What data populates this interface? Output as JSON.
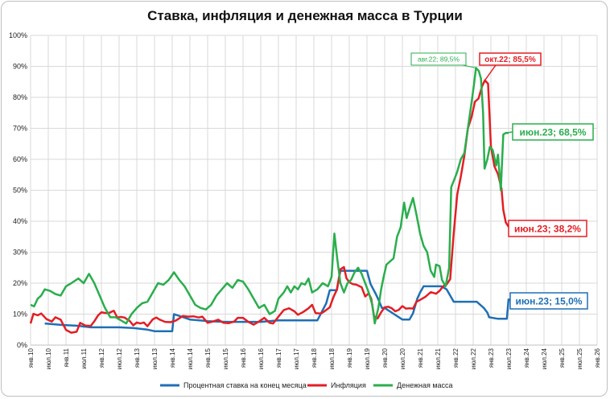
{
  "chart_data": {
    "type": "line",
    "title": "Ставка, инфляция и денежная масса в Турции",
    "xlabel": "",
    "ylabel": "",
    "ylim": [
      0,
      100
    ],
    "y_ticks": [
      "0%",
      "10%",
      "20%",
      "30%",
      "40%",
      "50%",
      "60%",
      "70%",
      "80%",
      "90%",
      "100%"
    ],
    "x_ticks": [
      "янв.10",
      "июл.10",
      "янв.11",
      "июл.11",
      "янв.12",
      "июл.12",
      "янв.13",
      "июл.13",
      "янв.14",
      "июл.14",
      "янв.15",
      "июл.15",
      "янв.16",
      "июл.16",
      "янв.17",
      "июл.17",
      "янв.18",
      "июл.18",
      "янв.19",
      "июл.19",
      "янв.20",
      "июл.20",
      "янв.21",
      "июл.21",
      "янв.22",
      "июл.22",
      "янв.23",
      "июл.23",
      "янв.24",
      "июл.24",
      "янв.25",
      "июл.25",
      "янв.26"
    ],
    "x_range_years": [
      2010.0,
      2026.0
    ],
    "legend_position": "bottom",
    "series": [
      {
        "name": "Процентная ставка на конец месяца",
        "color": "#1f6fb5",
        "points": [
          [
            2010.4,
            7.0
          ],
          [
            2010.9,
            6.5
          ],
          [
            2011.3,
            6.25
          ],
          [
            2011.7,
            5.75
          ],
          [
            2012.5,
            5.75
          ],
          [
            2012.9,
            5.5
          ],
          [
            2013.3,
            5.0
          ],
          [
            2013.5,
            4.5
          ],
          [
            2014.0,
            4.5
          ],
          [
            2014.05,
            10.0
          ],
          [
            2014.5,
            8.25
          ],
          [
            2015.0,
            7.75
          ],
          [
            2015.5,
            7.5
          ],
          [
            2016.0,
            7.5
          ],
          [
            2016.5,
            7.5
          ],
          [
            2017.0,
            8.0
          ],
          [
            2017.5,
            8.0
          ],
          [
            2018.0,
            8.0
          ],
          [
            2018.1,
            8.0
          ],
          [
            2018.35,
            13.5
          ],
          [
            2018.45,
            17.75
          ],
          [
            2018.65,
            17.75
          ],
          [
            2018.75,
            24.0
          ],
          [
            2019.0,
            24.0
          ],
          [
            2019.5,
            24.0
          ],
          [
            2019.6,
            19.75
          ],
          [
            2019.75,
            16.5
          ],
          [
            2019.85,
            14.0
          ],
          [
            2019.92,
            12.0
          ],
          [
            2020.0,
            12.0
          ],
          [
            2020.3,
            9.75
          ],
          [
            2020.5,
            8.25
          ],
          [
            2020.7,
            8.25
          ],
          [
            2020.8,
            10.25
          ],
          [
            2020.92,
            15.0
          ],
          [
            2021.0,
            17.0
          ],
          [
            2021.1,
            19.0
          ],
          [
            2021.6,
            19.0
          ],
          [
            2021.75,
            18.0
          ],
          [
            2021.85,
            16.0
          ],
          [
            2021.95,
            14.0
          ],
          [
            2022.1,
            14.0
          ],
          [
            2022.6,
            14.0
          ],
          [
            2022.7,
            13.0
          ],
          [
            2022.8,
            12.0
          ],
          [
            2022.9,
            10.5
          ],
          [
            2022.95,
            9.0
          ],
          [
            2023.2,
            8.5
          ],
          [
            2023.45,
            8.5
          ],
          [
            2023.5,
            15.0
          ]
        ]
      },
      {
        "name": "Инфляция",
        "color": "#e31e24",
        "points": [
          [
            2010.0,
            7.0
          ],
          [
            2010.08,
            10.1
          ],
          [
            2010.2,
            9.6
          ],
          [
            2010.3,
            10.2
          ],
          [
            2010.45,
            8.4
          ],
          [
            2010.6,
            7.6
          ],
          [
            2010.7,
            9.0
          ],
          [
            2010.85,
            8.2
          ],
          [
            2011.0,
            4.9
          ],
          [
            2011.15,
            4.0
          ],
          [
            2011.3,
            4.3
          ],
          [
            2011.4,
            7.2
          ],
          [
            2011.55,
            6.3
          ],
          [
            2011.7,
            6.2
          ],
          [
            2011.8,
            7.7
          ],
          [
            2011.9,
            9.5
          ],
          [
            2012.0,
            10.6
          ],
          [
            2012.1,
            10.4
          ],
          [
            2012.2,
            10.3
          ],
          [
            2012.35,
            11.1
          ],
          [
            2012.45,
            8.9
          ],
          [
            2012.55,
            9.1
          ],
          [
            2012.65,
            8.9
          ],
          [
            2012.8,
            7.8
          ],
          [
            2012.9,
            6.4
          ],
          [
            2013.0,
            7.3
          ],
          [
            2013.1,
            7.0
          ],
          [
            2013.2,
            7.3
          ],
          [
            2013.3,
            6.1
          ],
          [
            2013.45,
            8.3
          ],
          [
            2013.55,
            8.9
          ],
          [
            2013.65,
            8.2
          ],
          [
            2013.8,
            7.5
          ],
          [
            2013.95,
            7.4
          ],
          [
            2014.1,
            7.9
          ],
          [
            2014.3,
            9.4
          ],
          [
            2014.45,
            9.2
          ],
          [
            2014.6,
            9.3
          ],
          [
            2014.75,
            8.9
          ],
          [
            2014.85,
            9.2
          ],
          [
            2015.0,
            7.2
          ],
          [
            2015.15,
            7.6
          ],
          [
            2015.3,
            8.2
          ],
          [
            2015.45,
            7.2
          ],
          [
            2015.6,
            7.1
          ],
          [
            2015.75,
            7.6
          ],
          [
            2015.85,
            8.8
          ],
          [
            2016.0,
            8.8
          ],
          [
            2016.15,
            7.5
          ],
          [
            2016.3,
            6.6
          ],
          [
            2016.45,
            7.6
          ],
          [
            2016.6,
            8.8
          ],
          [
            2016.75,
            7.2
          ],
          [
            2016.85,
            7.0
          ],
          [
            2017.0,
            9.2
          ],
          [
            2017.15,
            11.3
          ],
          [
            2017.3,
            11.9
          ],
          [
            2017.45,
            10.9
          ],
          [
            2017.55,
            9.8
          ],
          [
            2017.7,
            10.7
          ],
          [
            2017.85,
            11.9
          ],
          [
            2017.95,
            13.0
          ],
          [
            2018.05,
            10.3
          ],
          [
            2018.2,
            10.2
          ],
          [
            2018.3,
            10.9
          ],
          [
            2018.45,
            12.2
          ],
          [
            2018.55,
            15.4
          ],
          [
            2018.65,
            17.9
          ],
          [
            2018.75,
            24.5
          ],
          [
            2018.85,
            25.2
          ],
          [
            2018.92,
            21.6
          ],
          [
            2019.0,
            20.3
          ],
          [
            2019.1,
            19.7
          ],
          [
            2019.2,
            19.5
          ],
          [
            2019.35,
            18.7
          ],
          [
            2019.45,
            15.7
          ],
          [
            2019.55,
            16.7
          ],
          [
            2019.62,
            15.0
          ],
          [
            2019.7,
            9.3
          ],
          [
            2019.8,
            8.6
          ],
          [
            2019.9,
            10.6
          ],
          [
            2020.0,
            12.2
          ],
          [
            2020.1,
            12.4
          ],
          [
            2020.2,
            11.9
          ],
          [
            2020.3,
            10.9
          ],
          [
            2020.4,
            11.4
          ],
          [
            2020.5,
            12.6
          ],
          [
            2020.6,
            11.8
          ],
          [
            2020.7,
            11.9
          ],
          [
            2020.8,
            11.8
          ],
          [
            2020.9,
            14.0
          ],
          [
            2021.0,
            14.6
          ],
          [
            2021.15,
            15.6
          ],
          [
            2021.3,
            17.1
          ],
          [
            2021.45,
            16.6
          ],
          [
            2021.55,
            17.5
          ],
          [
            2021.65,
            19.0
          ],
          [
            2021.75,
            19.6
          ],
          [
            2021.85,
            21.3
          ],
          [
            2021.95,
            36.1
          ],
          [
            2022.05,
            48.7
          ],
          [
            2022.15,
            54.4
          ],
          [
            2022.25,
            61.1
          ],
          [
            2022.35,
            70.0
          ],
          [
            2022.45,
            73.5
          ],
          [
            2022.55,
            78.6
          ],
          [
            2022.65,
            79.6
          ],
          [
            2022.75,
            83.5
          ],
          [
            2022.83,
            85.5
          ],
          [
            2022.92,
            84.4
          ],
          [
            2023.0,
            64.3
          ],
          [
            2023.1,
            57.7
          ],
          [
            2023.2,
            55.2
          ],
          [
            2023.3,
            50.5
          ],
          [
            2023.35,
            43.7
          ],
          [
            2023.42,
            39.6
          ],
          [
            2023.5,
            38.2
          ]
        ]
      },
      {
        "name": "Денежная масса",
        "color": "#2aae4d",
        "points": [
          [
            2010.0,
            13.0
          ],
          [
            2010.1,
            12.5
          ],
          [
            2010.2,
            15.0
          ],
          [
            2010.3,
            16.0
          ],
          [
            2010.4,
            18.0
          ],
          [
            2010.55,
            17.5
          ],
          [
            2010.7,
            16.5
          ],
          [
            2010.85,
            16.0
          ],
          [
            2011.0,
            19.0
          ],
          [
            2011.15,
            20.0
          ],
          [
            2011.35,
            21.5
          ],
          [
            2011.5,
            20.0
          ],
          [
            2011.65,
            23.0
          ],
          [
            2011.8,
            20.0
          ],
          [
            2011.95,
            16.0
          ],
          [
            2012.1,
            12.0
          ],
          [
            2012.25,
            9.0
          ],
          [
            2012.4,
            9.0
          ],
          [
            2012.55,
            8.0
          ],
          [
            2012.7,
            7.0
          ],
          [
            2012.85,
            10.0
          ],
          [
            2013.0,
            12.0
          ],
          [
            2013.15,
            13.5
          ],
          [
            2013.3,
            14.0
          ],
          [
            2013.45,
            17.0
          ],
          [
            2013.6,
            20.0
          ],
          [
            2013.75,
            19.5
          ],
          [
            2013.9,
            21.0
          ],
          [
            2014.05,
            23.5
          ],
          [
            2014.2,
            21.0
          ],
          [
            2014.35,
            19.0
          ],
          [
            2014.5,
            16.0
          ],
          [
            2014.65,
            13.0
          ],
          [
            2014.8,
            12.0
          ],
          [
            2014.95,
            11.5
          ],
          [
            2015.1,
            13.0
          ],
          [
            2015.25,
            16.0
          ],
          [
            2015.4,
            18.0
          ],
          [
            2015.55,
            20.0
          ],
          [
            2015.7,
            18.5
          ],
          [
            2015.85,
            21.0
          ],
          [
            2016.0,
            20.5
          ],
          [
            2016.15,
            18.0
          ],
          [
            2016.3,
            15.0
          ],
          [
            2016.45,
            12.0
          ],
          [
            2016.6,
            13.0
          ],
          [
            2016.75,
            10.0
          ],
          [
            2016.9,
            11.0
          ],
          [
            2017.0,
            15.0
          ],
          [
            2017.15,
            17.0
          ],
          [
            2017.25,
            19.0
          ],
          [
            2017.35,
            17.0
          ],
          [
            2017.45,
            19.0
          ],
          [
            2017.55,
            18.0
          ],
          [
            2017.65,
            20.0
          ],
          [
            2017.75,
            19.5
          ],
          [
            2017.85,
            21.5
          ],
          [
            2017.95,
            17.0
          ],
          [
            2018.1,
            18.0
          ],
          [
            2018.25,
            20.0
          ],
          [
            2018.4,
            19.0
          ],
          [
            2018.5,
            22.0
          ],
          [
            2018.58,
            36.0
          ],
          [
            2018.66,
            28.0
          ],
          [
            2018.75,
            20.0
          ],
          [
            2018.85,
            17.0
          ],
          [
            2018.95,
            20.0
          ],
          [
            2019.05,
            21.0
          ],
          [
            2019.15,
            23.5
          ],
          [
            2019.25,
            25.0
          ],
          [
            2019.35,
            23.0
          ],
          [
            2019.45,
            20.0
          ],
          [
            2019.55,
            17.0
          ],
          [
            2019.65,
            13.0
          ],
          [
            2019.72,
            7.0
          ],
          [
            2019.82,
            12.0
          ],
          [
            2019.9,
            18.0
          ],
          [
            2019.97,
            22.0
          ],
          [
            2020.05,
            26.0
          ],
          [
            2020.15,
            27.0
          ],
          [
            2020.25,
            28.0
          ],
          [
            2020.35,
            35.0
          ],
          [
            2020.45,
            38.0
          ],
          [
            2020.55,
            46.0
          ],
          [
            2020.62,
            41.0
          ],
          [
            2020.7,
            44.0
          ],
          [
            2020.8,
            47.5
          ],
          [
            2020.9,
            42.0
          ],
          [
            2021.0,
            36.0
          ],
          [
            2021.1,
            32.0
          ],
          [
            2021.2,
            30.0
          ],
          [
            2021.3,
            24.0
          ],
          [
            2021.4,
            22.0
          ],
          [
            2021.45,
            26.0
          ],
          [
            2021.55,
            25.5
          ],
          [
            2021.62,
            21.0
          ],
          [
            2021.72,
            19.0
          ],
          [
            2021.82,
            25.0
          ],
          [
            2021.88,
            51.0
          ],
          [
            2021.95,
            53.0
          ],
          [
            2022.05,
            56.0
          ],
          [
            2022.15,
            60.0
          ],
          [
            2022.25,
            62.0
          ],
          [
            2022.35,
            70.0
          ],
          [
            2022.45,
            78.0
          ],
          [
            2022.52,
            84.0
          ],
          [
            2022.58,
            89.5
          ],
          [
            2022.66,
            88.5
          ],
          [
            2022.72,
            86.0
          ],
          [
            2022.78,
            75.0
          ],
          [
            2022.82,
            57.0
          ],
          [
            2022.9,
            60.0
          ],
          [
            2022.97,
            64.0
          ],
          [
            2023.05,
            63.0
          ],
          [
            2023.15,
            58.0
          ],
          [
            2023.2,
            61.5
          ],
          [
            2023.28,
            50.0
          ],
          [
            2023.35,
            68.0
          ],
          [
            2023.42,
            68.5
          ],
          [
            2023.5,
            68.5
          ]
        ]
      }
    ],
    "annotations": [
      {
        "text": "авг.22; 89,5%",
        "series": 2,
        "x": 2022.58,
        "y": 89.5
      },
      {
        "text": "окт.22; 85,5%",
        "series": 1,
        "x": 2022.83,
        "y": 85.5
      },
      {
        "text": "июн.23; 68,5%",
        "series": 2,
        "x": 2023.42,
        "y": 68.5
      },
      {
        "text": "июн.23; 38,2%",
        "series": 1,
        "x": 2023.5,
        "y": 38.2
      },
      {
        "text": "июн.23; 15,0%",
        "series": 0,
        "x": 2023.5,
        "y": 15.0
      }
    ]
  }
}
